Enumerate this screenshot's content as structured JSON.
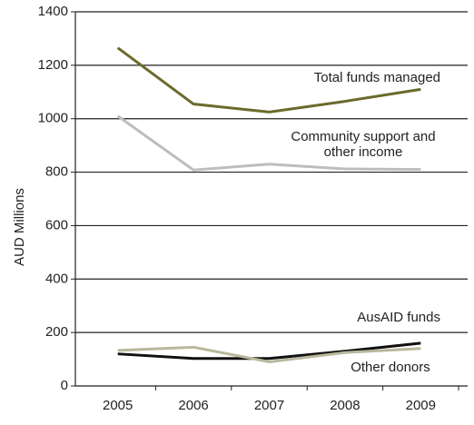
{
  "chart_data": {
    "type": "line",
    "ylabel": "AUD Millions",
    "categories": [
      "2005",
      "2006",
      "2007",
      "2008",
      "2009"
    ],
    "series": [
      {
        "name": "Total funds managed",
        "color": "#6b6a2b",
        "values": [
          1265,
          1055,
          1025,
          1065,
          1110
        ]
      },
      {
        "name": "Community support and other income",
        "color": "#bdbdbd",
        "values": [
          1010,
          808,
          830,
          812,
          810
        ]
      },
      {
        "name": "AusAID funds",
        "color": "#111111",
        "values": [
          120,
          103,
          103,
          130,
          160
        ]
      },
      {
        "name": "Other donors",
        "color": "#b9b89e",
        "values": [
          133,
          145,
          90,
          125,
          140
        ]
      }
    ],
    "ylim": [
      0,
      1400
    ],
    "yticks": [
      0,
      200,
      400,
      600,
      800,
      1000,
      1200,
      1400
    ],
    "grid": true
  }
}
